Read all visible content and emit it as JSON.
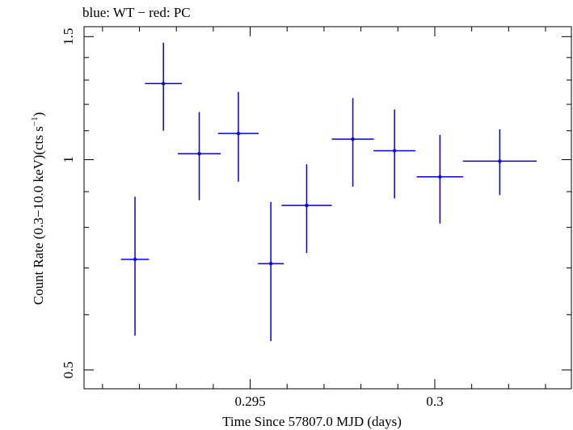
{
  "chart_data": {
    "type": "scatter",
    "title": "blue: WT − red: PC",
    "xlabel": "Time Since 57807.0 MJD (days)",
    "ylabel_main": "Count Rate (0.3−10.0 keV)(cts s",
    "ylabel_sup": "−1",
    "ylabel_close": ")",
    "xlim": [
      0.2905,
      0.3037
    ],
    "ylim": [
      0.47,
      1.55
    ],
    "xticks": [
      {
        "value": 0.295,
        "label": "0.295"
      },
      {
        "value": 0.3,
        "label": "0.3"
      }
    ],
    "yticks": [
      {
        "value": 0.5,
        "label": "0.5"
      },
      {
        "value": 1.0,
        "label": "1"
      },
      {
        "value": 1.5,
        "label": "1.5"
      }
    ],
    "series": [
      {
        "name": "WT",
        "color": "#0000ee",
        "points": [
          {
            "x": 0.29188,
            "xerr": 0.00038,
            "y": 0.72,
            "yerr_low": 0.16,
            "yerr_high": 0.165
          },
          {
            "x": 0.29265,
            "xerr": 0.0005,
            "y": 1.285,
            "yerr_low": 0.185,
            "yerr_high": 0.185
          },
          {
            "x": 0.29362,
            "xerr": 0.00058,
            "y": 1.02,
            "yerr_low": 0.145,
            "yerr_high": 0.15
          },
          {
            "x": 0.29468,
            "xerr": 0.00055,
            "y": 1.09,
            "yerr_low": 0.16,
            "yerr_high": 0.16
          },
          {
            "x": 0.29556,
            "xerr": 0.00035,
            "y": 0.71,
            "yerr_low": 0.16,
            "yerr_high": 0.16
          },
          {
            "x": 0.29653,
            "xerr": 0.00068,
            "y": 0.86,
            "yerr_low": 0.125,
            "yerr_high": 0.125
          },
          {
            "x": 0.29778,
            "xerr": 0.00057,
            "y": 1.07,
            "yerr_low": 0.155,
            "yerr_high": 0.155
          },
          {
            "x": 0.29891,
            "xerr": 0.00057,
            "y": 1.03,
            "yerr_low": 0.15,
            "yerr_high": 0.15
          },
          {
            "x": 0.30014,
            "xerr": 0.00063,
            "y": 0.945,
            "yerr_low": 0.135,
            "yerr_high": 0.14
          },
          {
            "x": 0.30176,
            "xerr": 0.001,
            "y": 0.995,
            "yerr_low": 0.105,
            "yerr_high": 0.11
          }
        ]
      }
    ]
  }
}
